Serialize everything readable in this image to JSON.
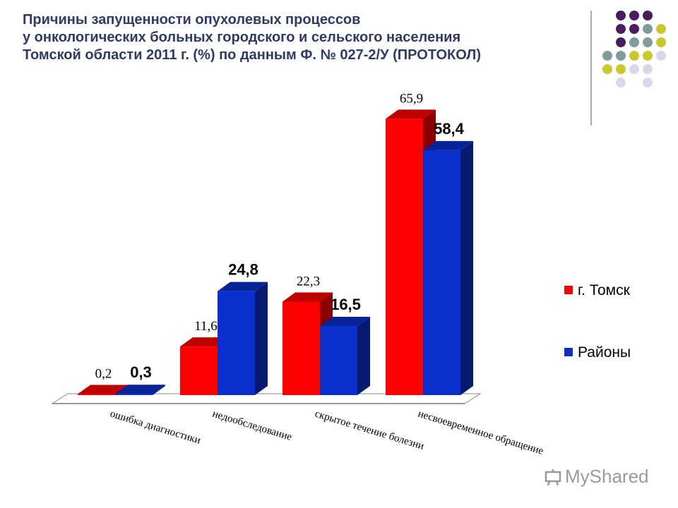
{
  "title": {
    "line1": "Причины запущенности опухолевых процессов",
    "line2": "у онкологических больных городского и сельского населения",
    "line3": "Томской области 2011 г. (%) по данным Ф. № 027-2/У (ПРОТОКОЛ)"
  },
  "watermark": {
    "text": "MyShared"
  },
  "colors": {
    "title": "#2f3b66",
    "tomsk": "#ff0000",
    "districts": "#0a2fcc",
    "dot_purple": "#4a1e5e",
    "dot_teal": "#7f9b9b",
    "dot_olive": "#c9c82e",
    "dot_lavender": "#d9d8ea"
  },
  "chart_data": {
    "type": "bar",
    "categories": [
      "ошибка диагностики",
      "недообследование",
      "скрытое течение болезни",
      "несвоевременное обращение"
    ],
    "series": [
      {
        "name": "г. Томск",
        "values": [
          0.2,
          11.6,
          22.3,
          65.9
        ],
        "labels": [
          "0,2",
          "11,6",
          "22,3",
          "65,9"
        ]
      },
      {
        "name": "Районы",
        "values": [
          0.3,
          24.8,
          16.5,
          58.4
        ],
        "labels": [
          "0,3",
          "24,8",
          "16,5",
          "58,4"
        ]
      }
    ],
    "ylim": [
      0,
      70
    ],
    "grid": false,
    "legend": "right",
    "style": "3d"
  }
}
